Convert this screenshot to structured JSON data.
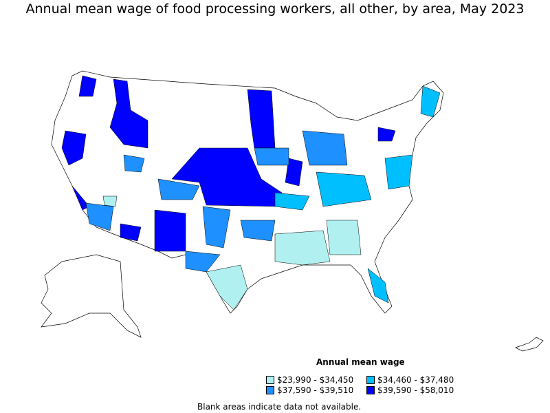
{
  "title": "Annual mean wage of food processing workers, all other, by area, May 2023",
  "legend": {
    "title": "Annual mean wage",
    "items": [
      {
        "label": "$23,990 - $34,450",
        "color": "#b0f0f0"
      },
      {
        "label": "$34,460 - $37,480",
        "color": "#00bfff"
      },
      {
        "label": "$37,590 - $39,510",
        "color": "#1e90ff"
      },
      {
        "label": "$39,590 - $58,010",
        "color": "#0000ff"
      }
    ]
  },
  "note": "Blank areas indicate data not available."
}
